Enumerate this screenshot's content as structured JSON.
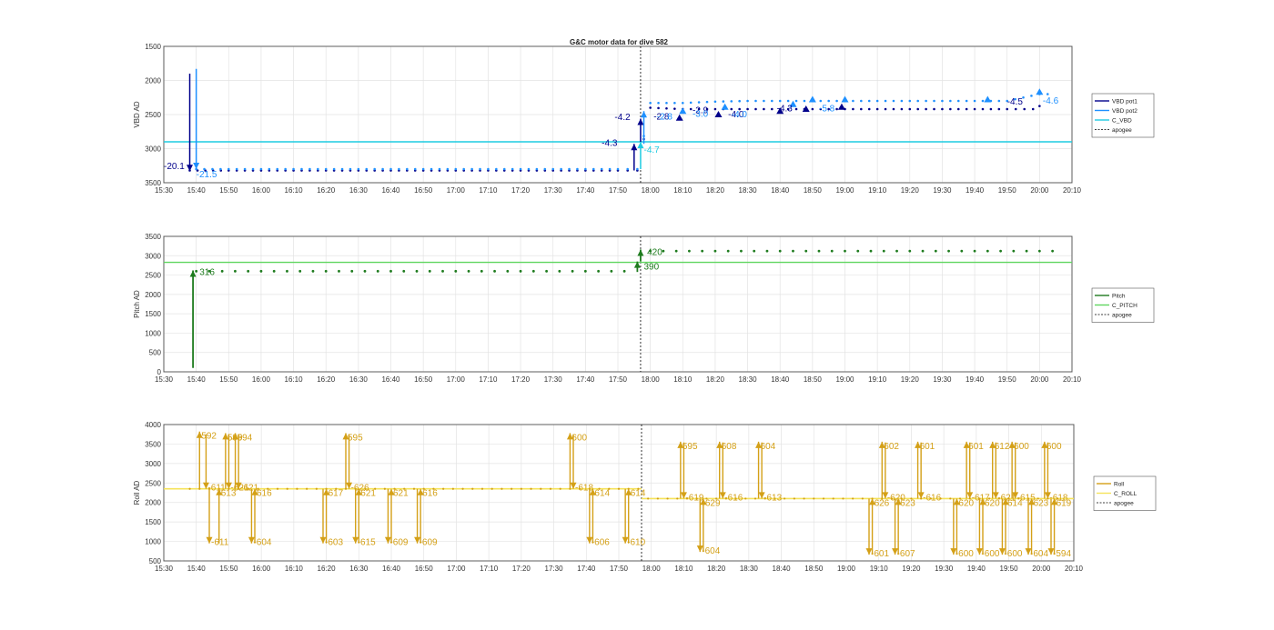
{
  "figure": {
    "title": "G&C motor data for dive 582"
  },
  "chart_data": [
    {
      "type": "line",
      "id": "vbd",
      "title": "G&C motor data for dive 582",
      "ylabel": "VBD AD",
      "xlabel": "",
      "x_ticks": [
        "15:30",
        "15:40",
        "15:50",
        "16:00",
        "16:10",
        "16:20",
        "16:30",
        "16:40",
        "16:50",
        "17:00",
        "17:10",
        "17:20",
        "17:30",
        "17:40",
        "17:50",
        "18:00",
        "18:10",
        "18:20",
        "18:30",
        "18:40",
        "18:50",
        "19:00",
        "19:10",
        "19:20",
        "19:30",
        "19:40",
        "19:50",
        "20:00",
        "20:10"
      ],
      "xlim": [
        "15:30",
        "20:10"
      ],
      "ylim": [
        1500,
        3500
      ],
      "y_reversed": true,
      "y_ticks": [
        1500,
        2000,
        2500,
        3000,
        3500
      ],
      "grid": true,
      "legend_position": "right",
      "legend": [
        "VBD pot1",
        "VBD pot2",
        "C_VBD",
        "apogee"
      ],
      "colors": {
        "pot1": "#00008b",
        "pot2": "#1e90ff",
        "c_vbd": "#1ecbe1",
        "apogee": "#000000"
      },
      "apogee": "17:57",
      "c_vbd_level": 2900,
      "pot1_points": {
        "x": [
          "15:38",
          "15:50",
          "16:10",
          "16:30",
          "16:50",
          "17:10",
          "17:30",
          "17:50",
          "17:56",
          "18:00",
          "18:10",
          "18:20",
          "18:30",
          "18:40",
          "18:50",
          "19:00",
          "19:10",
          "19:20",
          "19:30",
          "19:40",
          "19:50",
          "19:58",
          "20:02"
        ],
        "y": [
          3320,
          3320,
          3320,
          3320,
          3320,
          3320,
          3320,
          3320,
          3320,
          2400,
          2420,
          2420,
          2420,
          2420,
          2420,
          2420,
          2420,
          2420,
          2420,
          2420,
          2420,
          2420,
          2330
        ]
      },
      "pot2_points": {
        "x": [
          "15:40",
          "15:50",
          "16:10",
          "16:30",
          "16:50",
          "17:10",
          "17:30",
          "17:50",
          "17:56",
          "18:00",
          "18:10",
          "18:20",
          "18:30",
          "18:40",
          "18:50",
          "19:00",
          "19:10",
          "19:20",
          "19:30",
          "19:40",
          "19:50",
          "20:00",
          "20:05"
        ],
        "y": [
          3300,
          3300,
          3300,
          3300,
          3300,
          3300,
          3300,
          3300,
          3300,
          2330,
          2330,
          2310,
          2300,
          2300,
          2300,
          2300,
          2300,
          2300,
          2300,
          2300,
          2300,
          2200,
          2200
        ]
      },
      "arrows": [
        {
          "x": "15:38",
          "from": 1900,
          "to": 3330,
          "series": "pot1"
        },
        {
          "x": "15:40",
          "from": 1830,
          "to": 3300,
          "series": "pot2"
        },
        {
          "x": "17:55",
          "from": 3320,
          "to": 2930,
          "series": "pot1"
        },
        {
          "x": "17:57",
          "from": 2900,
          "to": 2560,
          "series": "pot1"
        },
        {
          "x": "17:58",
          "from": 2930,
          "to": 2450,
          "series": "pot2"
        },
        {
          "x": "17:57",
          "from": 3300,
          "to": 2900,
          "series": "c_vbd"
        }
      ],
      "markers": [
        {
          "x": "18:09",
          "y": 2550,
          "series": "pot1"
        },
        {
          "x": "18:10",
          "y": 2450,
          "series": "pot2"
        },
        {
          "x": "18:21",
          "y": 2500,
          "series": "pot1"
        },
        {
          "x": "18:23",
          "y": 2390,
          "series": "pot2"
        },
        {
          "x": "18:40",
          "y": 2450,
          "series": "pot1"
        },
        {
          "x": "18:44",
          "y": 2350,
          "series": "pot2"
        },
        {
          "x": "18:48",
          "y": 2420,
          "series": "pot1"
        },
        {
          "x": "18:50",
          "y": 2280,
          "series": "pot2"
        },
        {
          "x": "18:59",
          "y": 2390,
          "series": "pot1"
        },
        {
          "x": "19:00",
          "y": 2280,
          "series": "pot2"
        },
        {
          "x": "19:44",
          "y": 2280,
          "series": "pot2"
        },
        {
          "x": "20:00",
          "y": 2170,
          "series": "pot2"
        }
      ],
      "labels": [
        {
          "text": "-20.1",
          "x": "15:30",
          "y": 3300,
          "series": "pot1"
        },
        {
          "text": "-21.5",
          "x": "15:40",
          "y": 3420,
          "series": "pot2"
        },
        {
          "text": "-4.3",
          "x": "17:45",
          "y": 2960,
          "series": "pot1"
        },
        {
          "text": "-4.2",
          "x": "17:49",
          "y": 2580,
          "series": "pot1"
        },
        {
          "text": "-4.7",
          "x": "17:58",
          "y": 3060,
          "series": "c_vbd"
        },
        {
          "text": "-2.8",
          "x": "18:01",
          "y": 2570,
          "series": "pot1"
        },
        {
          "text": "-2.8",
          "x": "18:02",
          "y": 2570,
          "series": "pot2"
        },
        {
          "text": "-2.9",
          "x": "18:13",
          "y": 2480,
          "series": "pot1"
        },
        {
          "text": "-3.0",
          "x": "18:13",
          "y": 2530,
          "series": "pot2"
        },
        {
          "text": "-4.0",
          "x": "18:24",
          "y": 2540,
          "series": "pot1"
        },
        {
          "text": "-4.0",
          "x": "18:25",
          "y": 2540,
          "series": "pot2"
        },
        {
          "text": "-4.3",
          "x": "18:39",
          "y": 2450,
          "series": "pot1"
        },
        {
          "text": "-5.8",
          "x": "18:52",
          "y": 2450,
          "series": "pot2"
        },
        {
          "text": "-4.5",
          "x": "19:50",
          "y": 2350,
          "series": "pot1"
        },
        {
          "text": "-4.6",
          "x": "20:01",
          "y": 2340,
          "series": "pot2"
        }
      ]
    },
    {
      "type": "line",
      "id": "pitch",
      "ylabel": "Pitch AD",
      "xlabel": "",
      "x_ticks": [
        "15:30",
        "15:40",
        "15:50",
        "16:00",
        "16:10",
        "16:20",
        "16:30",
        "16:40",
        "16:50",
        "17:00",
        "17:10",
        "17:20",
        "17:30",
        "17:40",
        "17:50",
        "18:00",
        "18:10",
        "18:20",
        "18:30",
        "18:40",
        "18:50",
        "19:00",
        "19:10",
        "19:20",
        "19:30",
        "19:40",
        "19:50",
        "20:00",
        "20:10"
      ],
      "xlim": [
        "15:30",
        "20:10"
      ],
      "ylim": [
        0,
        3500
      ],
      "y_ticks": [
        0,
        500,
        1000,
        1500,
        2000,
        2500,
        3000,
        3500
      ],
      "grid": true,
      "legend_position": "right",
      "legend": [
        "Pitch",
        "C_PITCH",
        "apogee"
      ],
      "colors": {
        "pitch": "#1e7b1e",
        "c_pitch": "#5fd65f",
        "apogee": "#000000"
      },
      "apogee": "17:57",
      "c_pitch_level": 2830,
      "points": {
        "x_start": "15:40",
        "x_end": "17:55",
        "y_before": 2600,
        "x_after_start": "18:00",
        "x_after_end": "20:05",
        "y_after": 3120
      },
      "arrows": [
        {
          "x": "15:39",
          "from": 100,
          "to": 2620
        },
        {
          "x": "17:56",
          "from": 2580,
          "to": 2850
        },
        {
          "x": "17:57",
          "from": 2850,
          "to": 3160
        }
      ],
      "labels": [
        {
          "text": "316",
          "x": "15:41",
          "y": 2500
        },
        {
          "text": "390",
          "x": "17:58",
          "y": 2640
        },
        {
          "text": "420",
          "x": "17:59",
          "y": 3020
        }
      ]
    },
    {
      "type": "line",
      "id": "roll",
      "ylabel": "Roll AD",
      "xlabel": "",
      "x_ticks": [
        "15:30",
        "15:40",
        "15:50",
        "16:00",
        "16:10",
        "16:20",
        "16:30",
        "16:40",
        "16:50",
        "17:00",
        "17:10",
        "17:20",
        "17:30",
        "17:40",
        "17:50",
        "18:00",
        "18:10",
        "18:20",
        "18:30",
        "18:40",
        "18:50",
        "19:00",
        "19:10",
        "19:20",
        "19:30",
        "19:40",
        "19:50",
        "20:00",
        "20:10"
      ],
      "xlim": [
        "15:30",
        "20:10"
      ],
      "ylim": [
        500,
        4000
      ],
      "y_ticks": [
        500,
        1000,
        1500,
        2000,
        2500,
        3000,
        3500,
        4000
      ],
      "grid": true,
      "legend_position": "right",
      "legend": [
        "Roll",
        "C_ROLL",
        "apogee"
      ],
      "colors": {
        "roll": "#d4a017",
        "c_roll": "#f5e35a",
        "apogee": "#000000"
      },
      "apogee": "17:57",
      "c_roll_before": 2350,
      "c_roll_after": 2100,
      "arrows": [
        {
          "x": "15:41",
          "from": 2350,
          "to": 3820,
          "label": "592",
          "label_pos": "top"
        },
        {
          "x": "15:43",
          "from": 3750,
          "to": 2350,
          "label": "-611",
          "label_pos": "bottom"
        },
        {
          "x": "15:44",
          "from": 2350,
          "to": 950,
          "label": "-611",
          "label_pos": "bottom"
        },
        {
          "x": "15:47",
          "from": 950,
          "to": 2350,
          "label": "613",
          "label_pos": "top"
        },
        {
          "x": "15:49",
          "from": 2350,
          "to": 3780,
          "label": "599",
          "label_pos": "top"
        },
        {
          "x": "15:50",
          "from": 3750,
          "to": 2350,
          "label": "-621",
          "label_pos": "bottom"
        },
        {
          "x": "15:52",
          "from": 2350,
          "to": 3780,
          "label": "594",
          "label_pos": "top"
        },
        {
          "x": "15:53",
          "from": 3750,
          "to": 2350,
          "label": "-621",
          "label_pos": "bottom"
        },
        {
          "x": "15:57",
          "from": 2350,
          "to": 950,
          "label": "-604",
          "label_pos": "bottom"
        },
        {
          "x": "15:58",
          "from": 950,
          "to": 2350,
          "label": "616",
          "label_pos": "top"
        },
        {
          "x": "16:19",
          "from": 2350,
          "to": 950,
          "label": "-603",
          "label_pos": "bottom"
        },
        {
          "x": "16:20",
          "from": 950,
          "to": 2350,
          "label": "617",
          "label_pos": "top"
        },
        {
          "x": "16:26",
          "from": 2350,
          "to": 3780,
          "label": "595",
          "label_pos": "top"
        },
        {
          "x": "16:27",
          "from": 3750,
          "to": 2350,
          "label": "-626",
          "label_pos": "bottom"
        },
        {
          "x": "16:29",
          "from": 2350,
          "to": 950,
          "label": "-615",
          "label_pos": "bottom"
        },
        {
          "x": "16:30",
          "from": 950,
          "to": 2350,
          "label": "621",
          "label_pos": "top"
        },
        {
          "x": "16:39",
          "from": 2350,
          "to": 950,
          "label": "-609",
          "label_pos": "bottom"
        },
        {
          "x": "16:40",
          "from": 950,
          "to": 2350,
          "label": "621",
          "label_pos": "top"
        },
        {
          "x": "16:48",
          "from": 2350,
          "to": 950,
          "label": "-609",
          "label_pos": "bottom"
        },
        {
          "x": "16:49",
          "from": 950,
          "to": 2350,
          "label": "616",
          "label_pos": "top"
        },
        {
          "x": "17:35",
          "from": 2350,
          "to": 3780,
          "label": "600",
          "label_pos": "top"
        },
        {
          "x": "17:36",
          "from": 3750,
          "to": 2350,
          "label": "-618",
          "label_pos": "bottom"
        },
        {
          "x": "17:41",
          "from": 2350,
          "to": 950,
          "label": "-606",
          "label_pos": "bottom"
        },
        {
          "x": "17:42",
          "from": 950,
          "to": 2350,
          "label": "614",
          "label_pos": "top"
        },
        {
          "x": "17:52",
          "from": 2350,
          "to": 950,
          "label": "-610",
          "label_pos": "bottom"
        },
        {
          "x": "17:53",
          "from": 950,
          "to": 2350,
          "label": "614",
          "label_pos": "top"
        },
        {
          "x": "18:09",
          "from": 2100,
          "to": 3560,
          "label": "595",
          "label_pos": "top"
        },
        {
          "x": "18:10",
          "from": 3540,
          "to": 2100,
          "label": "-619",
          "label_pos": "bottom"
        },
        {
          "x": "18:15",
          "from": 2100,
          "to": 730,
          "label": "-604",
          "label_pos": "bottom"
        },
        {
          "x": "18:16",
          "from": 730,
          "to": 2100,
          "label": "629",
          "label_pos": "top"
        },
        {
          "x": "18:21",
          "from": 2100,
          "to": 3560,
          "label": "608",
          "label_pos": "top"
        },
        {
          "x": "18:22",
          "from": 3540,
          "to": 2100,
          "label": "-616",
          "label_pos": "bottom"
        },
        {
          "x": "18:33",
          "from": 2100,
          "to": 3560,
          "label": "604",
          "label_pos": "top"
        },
        {
          "x": "18:34",
          "from": 3540,
          "to": 2100,
          "label": "-613",
          "label_pos": "bottom"
        },
        {
          "x": "19:07",
          "from": 2100,
          "to": 660,
          "label": "-601",
          "label_pos": "bottom"
        },
        {
          "x": "19:08",
          "from": 660,
          "to": 2100,
          "label": "626",
          "label_pos": "top"
        },
        {
          "x": "19:11",
          "from": 2100,
          "to": 3560,
          "label": "602",
          "label_pos": "top"
        },
        {
          "x": "19:12",
          "from": 3540,
          "to": 2100,
          "label": "-620",
          "label_pos": "bottom"
        },
        {
          "x": "19:15",
          "from": 2100,
          "to": 660,
          "label": "-607",
          "label_pos": "bottom"
        },
        {
          "x": "19:16",
          "from": 660,
          "to": 2100,
          "label": "623",
          "label_pos": "top"
        },
        {
          "x": "19:22",
          "from": 2100,
          "to": 3560,
          "label": "601",
          "label_pos": "top"
        },
        {
          "x": "19:23",
          "from": 3540,
          "to": 2100,
          "label": "-616",
          "label_pos": "bottom"
        },
        {
          "x": "19:33",
          "from": 2100,
          "to": 660,
          "label": "-600",
          "label_pos": "bottom"
        },
        {
          "x": "19:34",
          "from": 660,
          "to": 2100,
          "label": "620",
          "label_pos": "top"
        },
        {
          "x": "19:37",
          "from": 2100,
          "to": 3560,
          "label": "601",
          "label_pos": "top"
        },
        {
          "x": "19:38",
          "from": 3540,
          "to": 2100,
          "label": "-617",
          "label_pos": "bottom"
        },
        {
          "x": "19:41",
          "from": 2100,
          "to": 660,
          "label": "-600",
          "label_pos": "bottom"
        },
        {
          "x": "19:42",
          "from": 660,
          "to": 2100,
          "label": "620",
          "label_pos": "top"
        },
        {
          "x": "19:45",
          "from": 2100,
          "to": 3560,
          "label": "612",
          "label_pos": "top"
        },
        {
          "x": "19:46",
          "from": 3540,
          "to": 2100,
          "label": "-621",
          "label_pos": "bottom"
        },
        {
          "x": "19:48",
          "from": 2100,
          "to": 660,
          "label": "-600",
          "label_pos": "bottom"
        },
        {
          "x": "19:49",
          "from": 660,
          "to": 2100,
          "label": "614",
          "label_pos": "top"
        },
        {
          "x": "19:51",
          "from": 2100,
          "to": 3560,
          "label": "600",
          "label_pos": "top"
        },
        {
          "x": "19:52",
          "from": 3540,
          "to": 2100,
          "label": "-615",
          "label_pos": "bottom"
        },
        {
          "x": "19:56",
          "from": 2100,
          "to": 660,
          "label": "-604",
          "label_pos": "bottom"
        },
        {
          "x": "19:57",
          "from": 660,
          "to": 2100,
          "label": "623",
          "label_pos": "top"
        },
        {
          "x": "20:01",
          "from": 2100,
          "to": 3560,
          "label": "600",
          "label_pos": "top"
        },
        {
          "x": "20:02",
          "from": 3540,
          "to": 2100,
          "label": "-618",
          "label_pos": "bottom"
        },
        {
          "x": "20:03",
          "from": 2100,
          "to": 660,
          "label": "-594",
          "label_pos": "bottom"
        },
        {
          "x": "20:04",
          "from": 660,
          "to": 2100,
          "label": "619",
          "label_pos": "top"
        }
      ]
    }
  ]
}
